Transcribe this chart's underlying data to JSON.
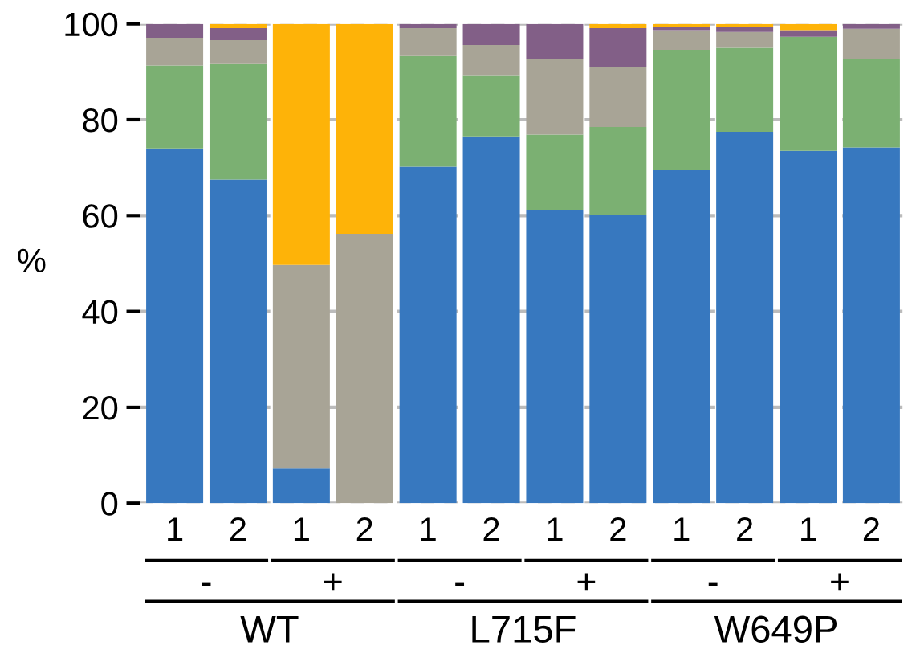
{
  "chart_data": {
    "type": "bar",
    "stacked": true,
    "ylabel": "%",
    "categories": [
      "1",
      "2",
      "1",
      "2",
      "1",
      "2",
      "1",
      "2",
      "1",
      "2",
      "1",
      "2"
    ],
    "series": [
      {
        "color": "#3778bf",
        "values": [
          74.0,
          67.5,
          7.2,
          0,
          70.2,
          76.5,
          61.1,
          60.1,
          69.5,
          77.5,
          73.5,
          74.2
        ]
      },
      {
        "color": "#7bb072",
        "values": [
          17.3,
          24.1,
          0,
          0,
          23.1,
          12.8,
          15.8,
          18.4,
          25.1,
          17.5,
          23.8,
          18.4
        ]
      },
      {
        "color": "#a8a496",
        "values": [
          5.8,
          5.0,
          42.5,
          56.2,
          5.8,
          6.3,
          15.7,
          12.5,
          4.1,
          3.3,
          0,
          6.4
        ]
      },
      {
        "color": "#825f87",
        "values": [
          2.9,
          2.5,
          0,
          0,
          0.9,
          4.4,
          7.4,
          8.1,
          0.6,
          1.0,
          1.4,
          1.0
        ]
      },
      {
        "color": "#feb308",
        "values": [
          0,
          0.9,
          50.3,
          43.8,
          0,
          0,
          0,
          0.9,
          0.7,
          0.7,
          1.3,
          0
        ]
      }
    ],
    "ylim": [
      0,
      100
    ],
    "yticks": [
      0,
      20,
      40,
      60,
      80,
      100
    ],
    "grid": "y",
    "annotations": [
      "-",
      "+",
      "-",
      "+",
      "-",
      "+",
      "WT",
      "L715F",
      "W649P"
    ]
  }
}
